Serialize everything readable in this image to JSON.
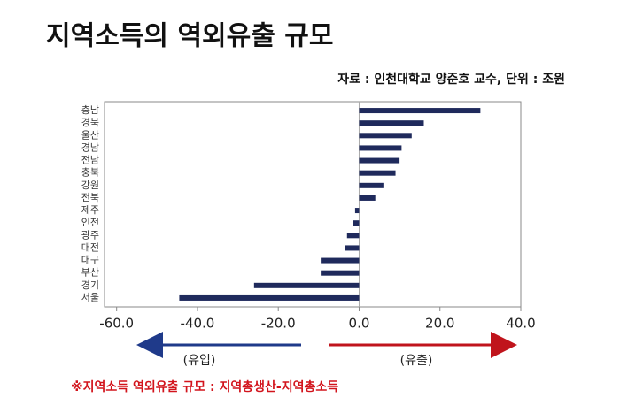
{
  "chart_data": {
    "type": "barh",
    "title": "지역소득의 역외유출 규모",
    "subtitle": "자료 : 인천대학교 양준호 교수, 단위 : 조원",
    "categories": [
      "충남",
      "경북",
      "울산",
      "경남",
      "전남",
      "충북",
      "강원",
      "전북",
      "제주",
      "인천",
      "광주",
      "대전",
      "대구",
      "부산",
      "경기",
      "서울"
    ],
    "values": [
      30,
      16,
      13,
      10.5,
      10,
      9,
      6,
      4,
      -1,
      -1.5,
      -3,
      -3.5,
      -9.5,
      -9.5,
      -26,
      -44.5
    ],
    "color": "#1f2a5c",
    "xlim": [
      -63,
      40
    ],
    "xticks": [
      {
        "value": -60,
        "label": "-60.0"
      },
      {
        "value": -40,
        "label": "-40.0"
      },
      {
        "value": -20,
        "label": "-20.0"
      },
      {
        "value": 0,
        "label": "0.0"
      },
      {
        "value": 20,
        "label": "20.0"
      },
      {
        "value": 40,
        "label": "40.0"
      }
    ],
    "left_annotation": "(유입)",
    "right_annotation": "(유출)",
    "footnote": "※지역소득 역외유출 규모 : 지역총생산-지역총소득"
  }
}
